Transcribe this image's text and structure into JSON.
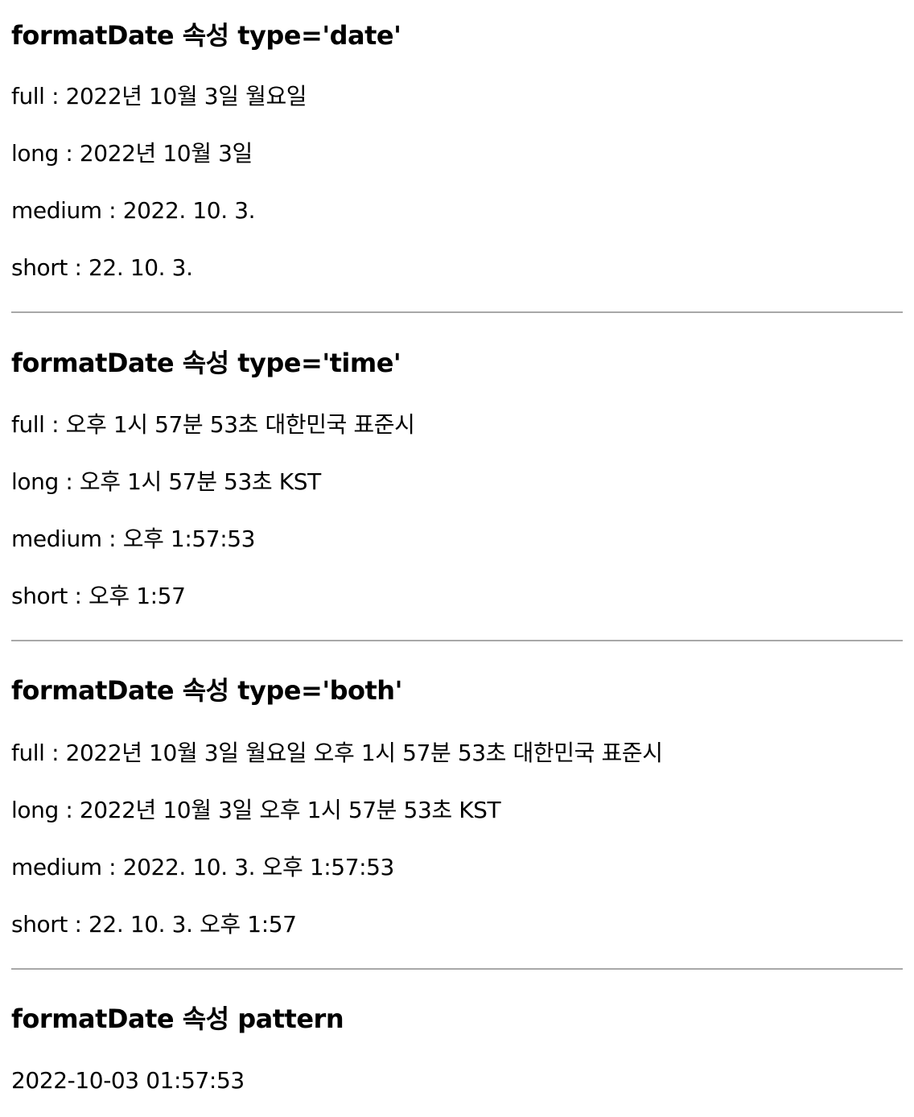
{
  "sections": [
    {
      "title": "formatDate 속성 type='date'",
      "lines": [
        "full : 2022년 10월 3일 월요일",
        "long : 2022년 10월 3일",
        "medium : 2022. 10. 3.",
        "short : 22. 10. 3."
      ]
    },
    {
      "title": "formatDate 속성 type='time'",
      "lines": [
        "full : 오후 1시 57분 53초 대한민국 표준시",
        "long : 오후 1시 57분 53초 KST",
        "medium : 오후 1:57:53",
        "short : 오후 1:57"
      ]
    },
    {
      "title": "formatDate 속성 type='both'",
      "lines": [
        "full : 2022년 10월 3일 월요일 오후 1시 57분 53초 대한민국 표준시",
        "long : 2022년 10월 3일 오후 1시 57분 53초 KST",
        "medium : 2022. 10. 3. 오후 1:57:53",
        "short : 22. 10. 3. 오후 1:57"
      ]
    },
    {
      "title": "formatDate 속성 pattern",
      "lines": [
        "2022-10-03 01:57:53"
      ]
    }
  ]
}
